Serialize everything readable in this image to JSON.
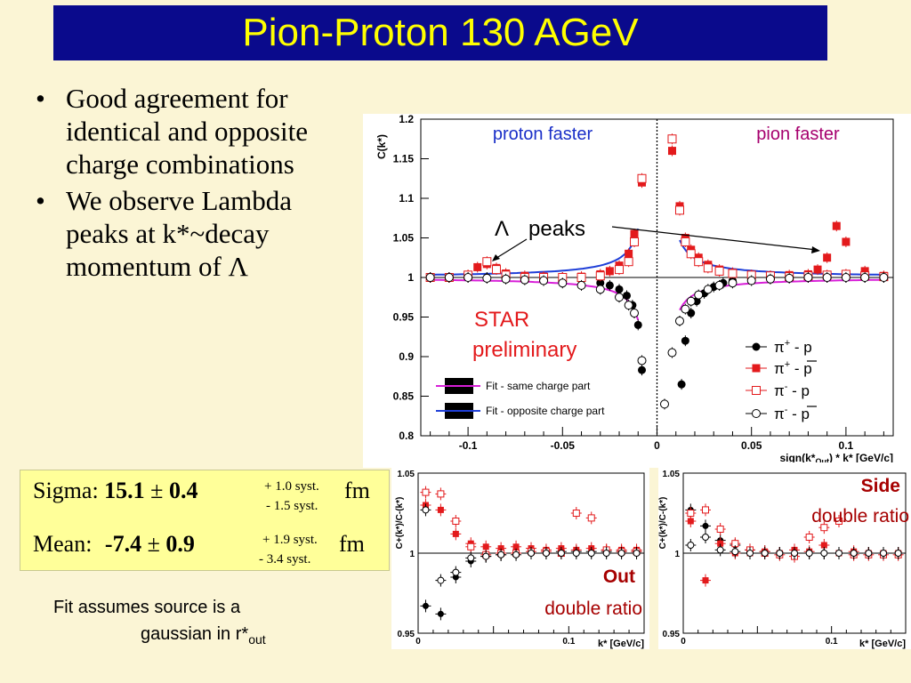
{
  "title": "Pion-Proton 130 AGeV",
  "bullets": [
    "Good agreement for identical and opposite charge combinations",
    "We observe Lambda peaks at k*~decay momentum of Λ"
  ],
  "fit_results": {
    "sigma_label": "Sigma:",
    "sigma_value": "15.1",
    "sigma_pm": "±",
    "sigma_err": "0.4",
    "sigma_syst_plus": "+ 1.0 syst.",
    "sigma_syst_minus": "- 1.5 syst.",
    "sigma_unit": "fm",
    "mean_label": "Mean:",
    "mean_value": "-7.4",
    "mean_pm": "±",
    "mean_err": "0.9",
    "mean_syst_plus": "+ 1.9 syst.",
    "mean_syst_minus": "- 3.4 syst.",
    "mean_unit": "fm"
  },
  "fit_note": {
    "line1": "Fit assumes source is a",
    "line2": "gaussian in r*",
    "line2_sub": "out"
  },
  "colors": {
    "title_bg": "#0a0a8c",
    "title_fg": "#ffff00",
    "slide_bg": "#fbf5d5",
    "box_bg": "#ffff99",
    "red": "#e31a1c",
    "blue_fit": "#1f3fd8",
    "magenta_fit": "#d81fd8"
  },
  "chart_data": [
    {
      "type": "scatter",
      "ylabel": "C(k*)",
      "xlabel": "sign(k*",
      "xlabel_sub": "Out",
      "xlabel_tail": ") * k* [GeV/c]",
      "xlim": [
        -0.125,
        0.125
      ],
      "ylim": [
        0.8,
        1.2
      ],
      "xticks": [
        -0.1,
        -0.05,
        0,
        0.05,
        0.1
      ],
      "xtick_labels": [
        "-0.1",
        "-0.05",
        "0",
        "0.05",
        "0.1"
      ],
      "yticks": [
        0.8,
        0.85,
        0.9,
        0.95,
        1,
        1.05,
        1.1,
        1.15,
        1.2
      ],
      "ytick_labels": [
        "0.8",
        "0.85",
        "0.9",
        "0.95",
        "1",
        "1.05",
        "1.1",
        "1.15",
        "1.2"
      ],
      "annotations": {
        "proton_faster": "proton faster",
        "pion_faster": "pion faster",
        "lambda_symbol": "Λ",
        "lambda_text": "peaks",
        "star_line1": "STAR",
        "star_line2": "preliminary"
      },
      "legend_position": "bottom-right",
      "series": [
        {
          "name": "π+ - p",
          "marker": "filled-circle",
          "color": "#000000",
          "x": [
            -0.12,
            -0.11,
            -0.1,
            -0.09,
            -0.08,
            -0.07,
            -0.06,
            -0.05,
            -0.04,
            -0.03,
            -0.025,
            -0.02,
            -0.016,
            -0.013,
            -0.01,
            -0.008,
            0.013,
            0.015,
            0.018,
            0.021,
            0.025,
            0.03,
            0.035,
            0.04,
            0.05,
            0.06,
            0.07,
            0.08,
            0.09,
            0.1,
            0.11,
            0.12
          ],
          "y": [
            1.0,
            1.0,
            1.0,
            1.0,
            1.0,
            1.0,
            1.0,
            1.0,
            0.998,
            0.993,
            0.99,
            0.985,
            0.977,
            0.965,
            0.94,
            0.883,
            0.865,
            0.92,
            0.955,
            0.97,
            0.98,
            0.988,
            0.993,
            0.996,
            0.998,
            0.999,
            1.0,
            1.0,
            1.0,
            1.0,
            1.0,
            1.0
          ]
        },
        {
          "name": "π+ - p̄",
          "marker": "filled-square",
          "color": "#e31a1c",
          "x": [
            -0.12,
            -0.11,
            -0.1,
            -0.095,
            -0.09,
            -0.085,
            -0.08,
            -0.07,
            -0.06,
            -0.05,
            -0.04,
            -0.03,
            -0.025,
            -0.02,
            -0.015,
            -0.012,
            -0.008,
            0.008,
            0.012,
            0.015,
            0.018,
            0.022,
            0.027,
            0.033,
            0.04,
            0.05,
            0.06,
            0.07,
            0.08,
            0.085,
            0.09,
            0.095,
            0.1,
            0.11,
            0.12
          ],
          "y": [
            1.0,
            1.0,
            1.003,
            1.013,
            1.017,
            1.012,
            1.005,
            1.002,
            1.001,
            1.0,
            1.001,
            1.004,
            1.008,
            1.015,
            1.03,
            1.055,
            1.12,
            1.16,
            1.09,
            1.05,
            1.035,
            1.025,
            1.016,
            1.01,
            1.006,
            1.003,
            1.002,
            1.003,
            1.004,
            1.01,
            1.025,
            1.065,
            1.045,
            1.008,
            1.002
          ]
        },
        {
          "name": "π- - p",
          "marker": "open-square",
          "color": "#e31a1c",
          "x": [
            -0.12,
            -0.11,
            -0.1,
            -0.09,
            -0.085,
            -0.08,
            -0.07,
            -0.06,
            -0.05,
            -0.04,
            -0.03,
            -0.02,
            -0.015,
            -0.012,
            -0.008,
            0.008,
            0.012,
            0.015,
            0.018,
            0.022,
            0.027,
            0.033,
            0.04,
            0.05,
            0.06,
            0.07,
            0.08,
            0.09,
            0.1,
            0.11,
            0.12
          ],
          "y": [
            1.0,
            1.0,
            1.003,
            1.02,
            1.01,
            1.003,
            1.0,
            1.0,
            1.0,
            1.0,
            1.002,
            1.01,
            1.02,
            1.045,
            1.125,
            1.175,
            1.085,
            1.045,
            1.03,
            1.02,
            1.012,
            1.008,
            1.005,
            1.003,
            1.002,
            1.001,
            1.002,
            1.003,
            1.004,
            1.002,
            1.001
          ]
        },
        {
          "name": "π- - p̄",
          "marker": "open-circle",
          "color": "#000000",
          "x": [
            -0.12,
            -0.11,
            -0.1,
            -0.09,
            -0.08,
            -0.07,
            -0.06,
            -0.05,
            -0.04,
            -0.03,
            -0.02,
            -0.015,
            -0.012,
            -0.008,
            0.004,
            0.008,
            0.012,
            0.015,
            0.018,
            0.022,
            0.027,
            0.033,
            0.04,
            0.05,
            0.06,
            0.07,
            0.08,
            0.09,
            0.1,
            0.11,
            0.12
          ],
          "y": [
            1.0,
            1.0,
            1.0,
            0.999,
            0.998,
            0.997,
            0.996,
            0.993,
            0.99,
            0.985,
            0.975,
            0.965,
            0.955,
            0.895,
            0.84,
            0.905,
            0.945,
            0.96,
            0.97,
            0.978,
            0.985,
            0.99,
            0.993,
            0.996,
            0.998,
            0.999,
            1.0,
            1.0,
            1.0,
            1.0,
            1.0
          ]
        }
      ],
      "fit_legend": [
        "Fit - same charge part",
        "Fit - opposite charge part"
      ]
    },
    {
      "type": "scatter",
      "ylabel": "C+(k*)/C-(k*)",
      "xlabel": "k* [GeV/c]",
      "xlim": [
        0,
        0.15
      ],
      "ylim": [
        0.95,
        1.05
      ],
      "xticks": [
        0,
        0.1
      ],
      "xtick_labels": [
        "0",
        "0.1"
      ],
      "yticks": [
        0.95,
        1,
        1.05
      ],
      "ytick_labels": [
        "0.95",
        "1",
        "1.05"
      ],
      "annotations": {
        "line1": "Out",
        "line2": "double ratio"
      },
      "series": [
        {
          "name": "filled-circle",
          "marker": "filled-circle",
          "color": "#000000",
          "x": [
            0.005,
            0.015,
            0.025,
            0.035,
            0.045,
            0.055,
            0.065,
            0.075,
            0.085,
            0.095,
            0.105,
            0.115,
            0.125,
            0.135,
            0.145
          ],
          "y": [
            0.967,
            0.962,
            0.985,
            0.995,
            0.998,
            0.999,
            1.0,
            1.0,
            1.0,
            1.001,
            1.001,
            1.001,
            1.001,
            1.001,
            1.001
          ]
        },
        {
          "name": "filled-square",
          "marker": "filled-square",
          "color": "#e31a1c",
          "x": [
            0.005,
            0.015,
            0.025,
            0.035,
            0.045,
            0.055,
            0.065,
            0.075,
            0.085,
            0.095,
            0.105,
            0.115,
            0.125,
            0.135,
            0.145
          ],
          "y": [
            1.03,
            1.027,
            1.012,
            1.006,
            1.004,
            1.003,
            1.004,
            1.003,
            1.002,
            1.003,
            1.002,
            1.003,
            1.002,
            1.002,
            1.002
          ]
        },
        {
          "name": "open-square",
          "marker": "open-square",
          "color": "#e31a1c",
          "x": [
            0.005,
            0.015,
            0.025,
            0.035,
            0.045,
            0.055,
            0.065,
            0.075,
            0.085,
            0.095,
            0.105,
            0.115,
            0.125,
            0.135,
            0.145
          ],
          "y": [
            1.038,
            1.037,
            1.02,
            1.004,
            0.999,
            1.0,
            1.0,
            1.001,
            1.001,
            1.0,
            1.025,
            1.022,
            1.002,
            1.001,
            1.001
          ]
        },
        {
          "name": "open-circle",
          "marker": "open-circle",
          "color": "#000000",
          "x": [
            0.005,
            0.015,
            0.025,
            0.035,
            0.045,
            0.055,
            0.065,
            0.075,
            0.085,
            0.095,
            0.105,
            0.115,
            0.125,
            0.135,
            0.145
          ],
          "y": [
            1.027,
            0.983,
            0.988,
            0.997,
            0.998,
            0.999,
            0.999,
            1.0,
            1.0,
            1.0,
            1.0,
            1.0,
            1.0,
            1.0,
            1.0
          ]
        }
      ]
    },
    {
      "type": "scatter",
      "ylabel": "C+(k*)/C-(k*)",
      "xlabel": "k* [GeV/c]",
      "xlim": [
        0,
        0.15
      ],
      "ylim": [
        0.95,
        1.05
      ],
      "xticks": [
        0,
        0.1
      ],
      "xtick_labels": [
        "0",
        "0.1"
      ],
      "yticks": [
        0.95,
        1,
        1.05
      ],
      "ytick_labels": [
        "0.95",
        "1",
        "1.05"
      ],
      "annotations": {
        "line1": "Side",
        "line2": "double ratio"
      },
      "series": [
        {
          "name": "filled-circle",
          "marker": "filled-circle",
          "color": "#000000",
          "x": [
            0.005,
            0.015,
            0.025,
            0.035,
            0.045,
            0.055,
            0.065,
            0.075,
            0.085,
            0.095,
            0.105,
            0.115,
            0.125,
            0.135,
            0.145
          ],
          "y": [
            1.027,
            1.017,
            1.008,
            1.005,
            1.002,
            1.001,
            1.0,
            1.0,
            1.0,
            1.0,
            1.0,
            1.0,
            1.0,
            1.0,
            1.0
          ]
        },
        {
          "name": "filled-square",
          "marker": "filled-square",
          "color": "#e31a1c",
          "x": [
            0.005,
            0.015,
            0.025,
            0.035,
            0.045,
            0.055,
            0.065,
            0.075,
            0.085,
            0.095,
            0.105,
            0.115,
            0.125,
            0.135,
            0.145
          ],
          "y": [
            1.02,
            0.983,
            1.006,
            1.0,
            1.0,
            1.001,
            1.0,
            1.002,
            1.001,
            1.005,
            1.0,
            1.001,
            1.0,
            1.0,
            1.0
          ]
        },
        {
          "name": "open-square",
          "marker": "open-square",
          "color": "#e31a1c",
          "x": [
            0.005,
            0.015,
            0.025,
            0.035,
            0.045,
            0.055,
            0.065,
            0.075,
            0.085,
            0.095,
            0.105,
            0.115,
            0.125,
            0.135,
            0.145
          ],
          "y": [
            1.025,
            1.027,
            1.015,
            1.006,
            1.002,
            1.0,
            0.999,
            0.998,
            1.01,
            1.016,
            1.02,
            0.999,
            0.999,
            0.999,
            0.999
          ]
        },
        {
          "name": "open-circle",
          "marker": "open-circle",
          "color": "#000000",
          "x": [
            0.005,
            0.015,
            0.025,
            0.035,
            0.045,
            0.055,
            0.065,
            0.075,
            0.085,
            0.095,
            0.105,
            0.115,
            0.125,
            0.135,
            0.145
          ],
          "y": [
            1.005,
            1.01,
            1.002,
            1.001,
            1.0,
            1.0,
            1.0,
            1.0,
            1.0,
            1.0,
            1.0,
            1.0,
            1.0,
            1.0,
            1.0
          ]
        }
      ]
    }
  ]
}
